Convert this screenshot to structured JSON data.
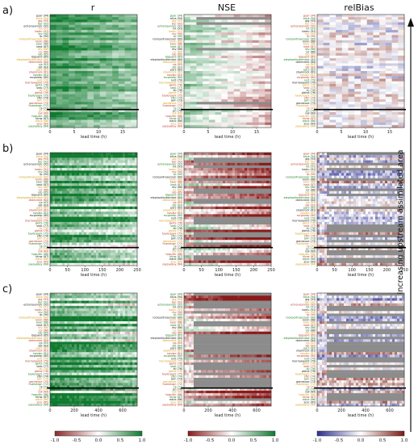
{
  "figure": {
    "side_label": "Increasing upstream assimilated area",
    "panel_labels": [
      "a)",
      "b)",
      "c)"
    ],
    "column_titles": [
      "r",
      "NSE",
      "relBias"
    ],
    "xlabel": "lead time (h)",
    "missing_color": "#8c8c8c"
  },
  "sites": [
    "guar (94)",
    "allus (94)",
    "gig (93)",
    "ber (92)",
    "echoreservoir (92)",
    "lvt (91)",
    "koelu (91)",
    "rkv (90)",
    "fp (90)",
    "rockportreservoir (89)",
    "kinm (88)",
    "keer (88)",
    "kast (87)",
    "rdv (86)",
    "lzr (86)",
    "lob (85)",
    "bigsand (85)",
    "elephantbutlerlake (84)",
    "deercreek (84)",
    "sjs (83)",
    "sbt (83)",
    "pars (82)",
    "shamrock (81)",
    "navajo (81)",
    "mcpheep (80)",
    "ivnt (79)",
    "morrowpoint (79)",
    "gerts (78)",
    "smb (77)",
    "lki (76)",
    "pbfall (76)",
    "taylorpark (75)",
    "sftri (74)",
    "jarn (73)",
    "ganesvoe (73)",
    "huenevgn (72)",
    "rjl (71)",
    "prl (70)",
    "rall (69)",
    "hpsuthr (68)",
    "htnw (67)",
    "edne (66)",
    "sroc (65)",
    "joesvalley (64)"
  ],
  "chart_data": [
    {
      "type": "heatmap",
      "panel": "a)",
      "lead_time_max_h": 18,
      "xticks": [
        0,
        5,
        10,
        15
      ],
      "row_groups": 2,
      "columns": [
        {
          "metric": "r",
          "colormap": "greens",
          "vmin": -1.0,
          "vmax": 1.0,
          "typical_value": 0.85,
          "missing_fraction": 0.0
        },
        {
          "metric": "NSE",
          "colormap": "red-white-green",
          "vmin": -1.0,
          "vmax": 1.0,
          "typical_value": 0.3,
          "missing_fraction": 0.08
        },
        {
          "metric": "relBias",
          "colormap": "purple-white-brown",
          "vmin": -1.0,
          "vmax": 1.0,
          "typical_value": 0.0,
          "missing_fraction": 0.02
        }
      ]
    },
    {
      "type": "heatmap",
      "panel": "b)",
      "lead_time_max_h": 250,
      "xticks": [
        0,
        50,
        100,
        150,
        200,
        250
      ],
      "row_groups": 2,
      "columns": [
        {
          "metric": "r",
          "colormap": "greens",
          "vmin": -1.0,
          "vmax": 1.0,
          "typical_value": 0.7,
          "missing_fraction": 0.0
        },
        {
          "metric": "NSE",
          "colormap": "red-white-green",
          "vmin": -1.0,
          "vmax": 1.0,
          "typical_value": -0.1,
          "missing_fraction": 0.35
        },
        {
          "metric": "relBias",
          "colormap": "purple-white-brown",
          "vmin": -1.0,
          "vmax": 1.0,
          "typical_value": 0.0,
          "missing_fraction": 0.35
        }
      ]
    },
    {
      "type": "heatmap",
      "panel": "c)",
      "lead_time_max_h": 720,
      "xticks": [
        0,
        200,
        400,
        600
      ],
      "row_groups": 2,
      "columns": [
        {
          "metric": "r",
          "colormap": "greens",
          "vmin": -1.0,
          "vmax": 1.0,
          "typical_value": 0.7,
          "missing_fraction": 0.0
        },
        {
          "metric": "NSE",
          "colormap": "red-white-green",
          "vmin": -1.0,
          "vmax": 1.0,
          "typical_value": -0.2,
          "missing_fraction": 0.5
        },
        {
          "metric": "relBias",
          "colormap": "purple-white-brown",
          "vmin": -1.0,
          "vmax": 1.0,
          "typical_value": 0.0,
          "missing_fraction": 0.45
        }
      ]
    }
  ],
  "colorbars": [
    {
      "metric": "r",
      "ticks": [
        "-1.0",
        "-0.5",
        "0.0",
        "0.5",
        "1.0"
      ],
      "colors": [
        "#8b2a2a",
        "#ffffff",
        "#0e7a2e"
      ]
    },
    {
      "metric": "NSE",
      "ticks": [
        "-1.0",
        "-0.5",
        "0.0",
        "0.5",
        "1.0"
      ],
      "colors": [
        "#8b1a1a",
        "#ffffff",
        "#0e7a2e"
      ]
    },
    {
      "metric": "relBias",
      "ticks": [
        "-1.0",
        "-0.5",
        "0.0",
        "0.5",
        "1.0"
      ],
      "colors": [
        "#2b2d8f",
        "#ffffff",
        "#7a1a10"
      ]
    }
  ],
  "label_colors": [
    "#222222",
    "#1a7f1a",
    "#c0392b",
    "#d4a017"
  ]
}
